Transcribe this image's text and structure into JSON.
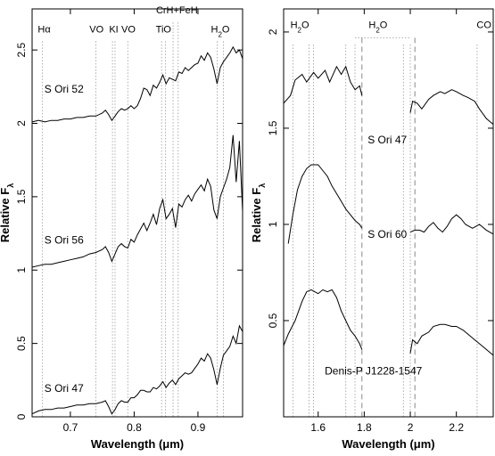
{
  "chart_data": [
    {
      "type": "line",
      "xlabel": "Wavelength (μm)",
      "ylabel": "Relative F",
      "ylabel_sub": "λ",
      "xlim": [
        0.64,
        0.97
      ],
      "ylim": [
        0,
        2.78
      ],
      "xticks": [
        0.7,
        0.8,
        0.9
      ],
      "xtick_labels": [
        "0.7",
        "0.8",
        "0.9"
      ],
      "yticks": [
        0,
        0.5,
        1,
        1.5,
        2,
        2.5
      ],
      "ytick_labels": [
        "0",
        "0.5",
        "1",
        "1.5",
        "2",
        "2.5"
      ],
      "grid": false,
      "line_markers": [
        {
          "label": "Hα",
          "x": [
            0.6563
          ],
          "label_x": 0.659,
          "label_y": 2.62
        },
        {
          "label": "VO",
          "x": [
            0.74
          ],
          "label_x": 0.741,
          "label_y": 2.62
        },
        {
          "label": "KI",
          "x": [
            0.766,
            0.77
          ],
          "label_x": 0.768,
          "label_y": 2.62
        },
        {
          "label": "VO",
          "x": [
            0.79
          ],
          "label_x": 0.791,
          "label_y": 2.62
        },
        {
          "label": "TiO",
          "x": [
            0.843,
            0.849
          ],
          "label_x": 0.846,
          "label_y": 2.62
        },
        {
          "label": "CrH+FeH",
          "x": [
            0.861,
            0.869
          ],
          "label_x": 0.867,
          "label_y": 2.75
        },
        {
          "label": "H2O",
          "x": [
            0.93,
            0.94
          ],
          "label_x": 0.935,
          "label_y": 2.62
        }
      ],
      "series": [
        {
          "name": "S Ori 52",
          "label_x": 0.69,
          "label_y": 2.21,
          "x": [
            0.64,
            0.65,
            0.66,
            0.67,
            0.68,
            0.69,
            0.7,
            0.71,
            0.72,
            0.73,
            0.74,
            0.75,
            0.755,
            0.76,
            0.765,
            0.77,
            0.775,
            0.78,
            0.785,
            0.79,
            0.795,
            0.8,
            0.805,
            0.81,
            0.815,
            0.82,
            0.825,
            0.83,
            0.835,
            0.84,
            0.845,
            0.85,
            0.855,
            0.86,
            0.865,
            0.87,
            0.875,
            0.88,
            0.885,
            0.89,
            0.895,
            0.9,
            0.905,
            0.91,
            0.915,
            0.92,
            0.925,
            0.93,
            0.935,
            0.94,
            0.945,
            0.95,
            0.955,
            0.96,
            0.965,
            0.97
          ],
          "y": [
            2.01,
            2.02,
            2.01,
            2.02,
            2.02,
            2.03,
            2.03,
            2.04,
            2.04,
            2.05,
            2.05,
            2.07,
            2.09,
            2.06,
            2.02,
            2.05,
            2.08,
            2.1,
            2.09,
            2.1,
            2.12,
            2.1,
            2.12,
            2.17,
            2.24,
            2.23,
            2.19,
            2.26,
            2.24,
            2.28,
            2.33,
            2.27,
            2.31,
            2.3,
            2.29,
            2.35,
            2.34,
            2.38,
            2.36,
            2.38,
            2.4,
            2.41,
            2.46,
            2.43,
            2.48,
            2.45,
            2.37,
            2.27,
            2.38,
            2.42,
            2.45,
            2.48,
            2.52,
            2.48,
            2.5,
            2.44
          ]
        },
        {
          "name": "S Ori 56",
          "label_x": 0.69,
          "label_y": 1.18,
          "x": [
            0.64,
            0.65,
            0.66,
            0.67,
            0.68,
            0.69,
            0.7,
            0.71,
            0.72,
            0.73,
            0.74,
            0.75,
            0.755,
            0.76,
            0.765,
            0.77,
            0.775,
            0.78,
            0.785,
            0.79,
            0.795,
            0.8,
            0.805,
            0.81,
            0.815,
            0.82,
            0.825,
            0.83,
            0.835,
            0.84,
            0.845,
            0.85,
            0.855,
            0.86,
            0.865,
            0.87,
            0.875,
            0.88,
            0.885,
            0.89,
            0.895,
            0.9,
            0.905,
            0.91,
            0.915,
            0.92,
            0.925,
            0.93,
            0.935,
            0.94,
            0.945,
            0.95,
            0.955,
            0.96,
            0.965,
            0.97
          ],
          "y": [
            1.02,
            1.03,
            1.04,
            1.04,
            1.05,
            1.06,
            1.07,
            1.08,
            1.09,
            1.11,
            1.12,
            1.14,
            1.16,
            1.12,
            1.06,
            1.11,
            1.16,
            1.18,
            1.16,
            1.15,
            1.21,
            1.19,
            1.24,
            1.28,
            1.32,
            1.27,
            1.32,
            1.38,
            1.31,
            1.42,
            1.48,
            1.35,
            1.38,
            1.42,
            1.29,
            1.45,
            1.43,
            1.48,
            1.51,
            1.47,
            1.52,
            1.55,
            1.58,
            1.54,
            1.62,
            1.57,
            1.41,
            1.35,
            1.5,
            1.56,
            1.62,
            1.7,
            1.92,
            1.6,
            1.88,
            1.4
          ]
        },
        {
          "name": "S Ori 47",
          "label_x": 0.69,
          "label_y": 0.17,
          "x": [
            0.64,
            0.65,
            0.66,
            0.67,
            0.68,
            0.69,
            0.7,
            0.71,
            0.72,
            0.73,
            0.74,
            0.75,
            0.755,
            0.76,
            0.765,
            0.77,
            0.775,
            0.78,
            0.785,
            0.79,
            0.795,
            0.8,
            0.805,
            0.81,
            0.815,
            0.82,
            0.825,
            0.83,
            0.835,
            0.84,
            0.845,
            0.85,
            0.855,
            0.86,
            0.865,
            0.87,
            0.875,
            0.88,
            0.885,
            0.89,
            0.895,
            0.9,
            0.905,
            0.91,
            0.915,
            0.92,
            0.925,
            0.93,
            0.935,
            0.94,
            0.945,
            0.95,
            0.955,
            0.96,
            0.965,
            0.97
          ],
          "y": [
            0.02,
            0.04,
            0.05,
            0.05,
            0.06,
            0.06,
            0.07,
            0.08,
            0.08,
            0.09,
            0.09,
            0.1,
            0.11,
            0.07,
            0.02,
            0.05,
            0.09,
            0.11,
            0.1,
            0.1,
            0.13,
            0.13,
            0.15,
            0.18,
            0.18,
            0.17,
            0.17,
            0.2,
            0.19,
            0.21,
            0.24,
            0.2,
            0.23,
            0.25,
            0.22,
            0.26,
            0.28,
            0.3,
            0.29,
            0.3,
            0.33,
            0.36,
            0.4,
            0.38,
            0.43,
            0.4,
            0.32,
            0.22,
            0.33,
            0.42,
            0.45,
            0.48,
            0.55,
            0.5,
            0.62,
            0.58
          ]
        }
      ]
    },
    {
      "type": "line",
      "xlabel": "Wavelength (μm)",
      "ylabel": "Relative F",
      "ylabel_sub": "λ",
      "xlim": [
        1.45,
        2.36
      ],
      "ylim": [
        0,
        2.12
      ],
      "xticks": [
        1.6,
        1.8,
        2.0,
        2.2
      ],
      "xtick_labels": [
        "1.6",
        "1.8",
        "2",
        "2.2"
      ],
      "yticks": [
        0.5,
        1,
        1.5,
        2
      ],
      "ytick_labels": [
        "0.5",
        "1",
        "1.5",
        "2"
      ],
      "grid": false,
      "band_markers": [
        {
          "label": "H2O",
          "x": [
            1.49,
            1.56,
            1.58
          ],
          "label_x": 1.52,
          "label_y": 2.02
        },
        {
          "label": "H2O",
          "x": [
            1.72,
            1.76,
            1.97,
            2.0
          ],
          "label_x": 1.86,
          "label_y": 2.02
        },
        {
          "label": "CO",
          "x": [
            2.29
          ],
          "label_x": 2.32,
          "label_y": 2.02
        }
      ],
      "band_bracket": [
        1.76,
        2.0,
        1.97
      ],
      "gap_lines_x": [
        1.79,
        2.02
      ],
      "series": [
        {
          "name": "S Ori 47",
          "label_x": 1.9,
          "label_y": 1.42,
          "segments": [
            {
              "x": [
                1.45,
                1.48,
                1.5,
                1.53,
                1.55,
                1.58,
                1.6,
                1.63,
                1.65,
                1.68,
                1.7,
                1.72,
                1.74,
                1.76,
                1.78,
                1.79
              ],
              "y": [
                1.63,
                1.67,
                1.75,
                1.78,
                1.74,
                1.79,
                1.76,
                1.8,
                1.74,
                1.82,
                1.78,
                1.82,
                1.74,
                1.7,
                1.72,
                1.67
              ]
            },
            {
              "x": [
                2.0,
                2.01,
                2.03,
                2.05,
                2.08,
                2.1,
                2.13,
                2.15,
                2.18,
                2.2,
                2.23,
                2.25,
                2.28,
                2.3,
                2.33,
                2.36
              ],
              "y": [
                1.58,
                1.64,
                1.63,
                1.6,
                1.65,
                1.67,
                1.69,
                1.68,
                1.7,
                1.69,
                1.67,
                1.66,
                1.64,
                1.6,
                1.55,
                1.52
              ]
            }
          ]
        },
        {
          "name": "S Ori 60",
          "label_x": 1.9,
          "label_y": 0.93,
          "segments": [
            {
              "x": [
                1.47,
                1.49,
                1.51,
                1.53,
                1.55,
                1.57,
                1.6,
                1.62,
                1.64,
                1.66,
                1.68,
                1.7,
                1.72,
                1.74,
                1.76,
                1.78,
                1.79
              ],
              "y": [
                0.9,
                1.05,
                1.18,
                1.25,
                1.29,
                1.31,
                1.31,
                1.28,
                1.25,
                1.2,
                1.16,
                1.12,
                1.08,
                1.05,
                1.02,
                1.0,
                0.98
              ]
            },
            {
              "x": [
                2.0,
                2.02,
                2.04,
                2.06,
                2.08,
                2.1,
                2.12,
                2.14,
                2.16,
                2.18,
                2.2,
                2.22,
                2.24,
                2.27,
                2.3,
                2.33,
                2.36
              ],
              "y": [
                0.96,
                0.97,
                0.97,
                0.96,
                0.99,
                1.01,
                0.98,
                0.96,
                0.99,
                1.03,
                1.05,
                1.03,
                1.0,
                0.98,
                1.0,
                0.97,
                0.95
              ]
            }
          ]
        },
        {
          "name": "Denis-P J1228-1547",
          "label_x": 1.84,
          "label_y": 0.22,
          "segments": [
            {
              "x": [
                1.45,
                1.47,
                1.5,
                1.53,
                1.55,
                1.57,
                1.6,
                1.62,
                1.64,
                1.66,
                1.68,
                1.7,
                1.72,
                1.74,
                1.76,
                1.78,
                1.79
              ],
              "y": [
                0.37,
                0.43,
                0.5,
                0.6,
                0.65,
                0.66,
                0.64,
                0.66,
                0.65,
                0.66,
                0.62,
                0.55,
                0.5,
                0.45,
                0.42,
                0.38,
                0.35
              ]
            },
            {
              "x": [
                2.0,
                2.01,
                2.03,
                2.05,
                2.08,
                2.1,
                2.13,
                2.15,
                2.18,
                2.2,
                2.23,
                2.25,
                2.28,
                2.3,
                2.33,
                2.36
              ],
              "y": [
                0.33,
                0.4,
                0.38,
                0.42,
                0.44,
                0.47,
                0.48,
                0.48,
                0.47,
                0.47,
                0.45,
                0.43,
                0.4,
                0.38,
                0.35,
                0.32
              ]
            }
          ]
        }
      ]
    }
  ]
}
